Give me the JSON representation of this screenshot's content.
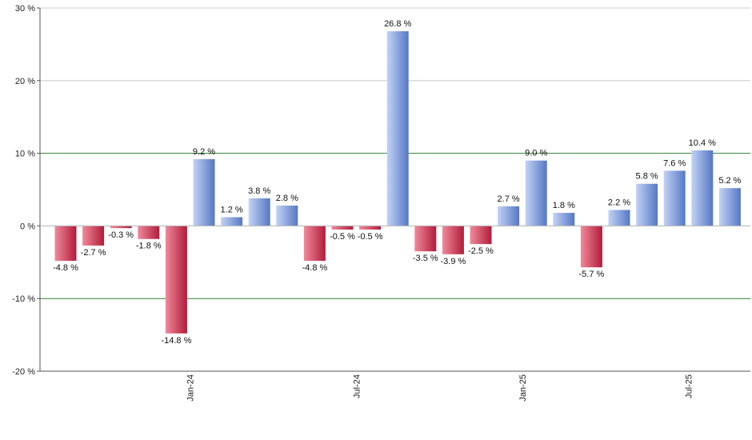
{
  "chart_data": {
    "type": "bar",
    "title": "",
    "xlabel": "",
    "ylabel": "",
    "ylim": [
      -20,
      30
    ],
    "y_ticks": [
      -20,
      -10,
      0,
      10,
      20,
      30
    ],
    "y_tick_labels": [
      "-20 %",
      "-10 %",
      "0 %",
      "10 %",
      "20 %",
      "30 %"
    ],
    "x_tick_labels": [
      {
        "label": "Jan-24",
        "index": 4.5
      },
      {
        "label": "Jul-24",
        "index": 10.5
      },
      {
        "label": "Jan-25",
        "index": 16.5
      },
      {
        "label": "Jul-25",
        "index": 22.5
      }
    ],
    "values": [
      -4.8,
      -2.7,
      -0.3,
      -1.8,
      -14.8,
      9.2,
      1.2,
      3.8,
      2.8,
      -4.8,
      -0.5,
      -0.5,
      26.8,
      -3.5,
      -3.9,
      -2.5,
      2.7,
      9.0,
      1.8,
      -5.7,
      2.2,
      5.8,
      7.6,
      10.4,
      5.2
    ],
    "value_labels": [
      "-4.8 %",
      "-2.7 %",
      "-0.3 %",
      "-1.8 %",
      "-14.8 %",
      "9.2 %",
      "1.2 %",
      "3.8 %",
      "2.8 %",
      "-4.8 %",
      "-0.5 %",
      "-0.5 %",
      "26.8 %",
      "-3.5 %",
      "-3.9 %",
      "-2.5 %",
      "2.7 %",
      "9.0 %",
      "1.8 %",
      "-5.7 %",
      "2.2 %",
      "5.8 %",
      "7.6 %",
      "10.4 %",
      "5.2 %"
    ],
    "reference_lines": [
      10,
      -10
    ],
    "colors": {
      "positive_light": "#c3d3f5",
      "positive_dark": "#5577c4",
      "negative_light": "#f08a9c",
      "negative_dark": "#b11c3a",
      "reference_line": "#2e7d32",
      "gridline": "#cccccc",
      "axis": "#555555"
    }
  }
}
